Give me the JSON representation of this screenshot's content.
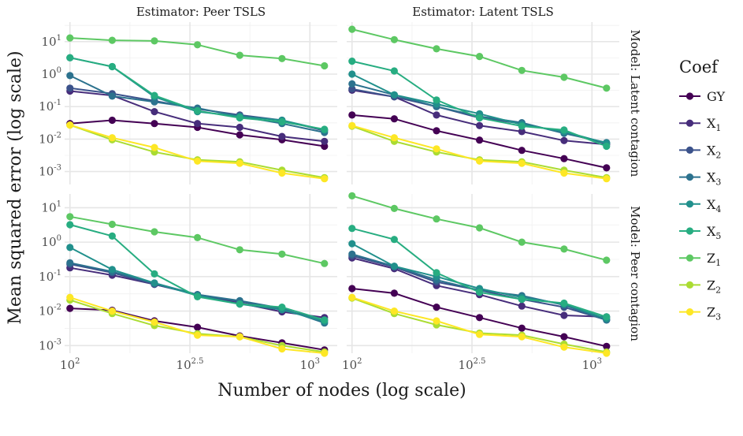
{
  "chart_data": {
    "type": "line",
    "facets": {
      "columns": [
        "Estimator: Peer TSLS",
        "Estimator: Latent TSLS"
      ],
      "rows": [
        "Model: Latent contagion",
        "Model: Peer contagion"
      ]
    },
    "xlabel": "Number of nodes (log scale)",
    "ylabel": "Mean squared error (log scale)",
    "x_scale": "log10",
    "y_scale": "log10",
    "xlim": [
      95,
      1300
    ],
    "ylim_rows": [
      [
        0.0004,
        40
      ],
      [
        0.0006,
        25
      ]
    ],
    "x_ticks": [
      {
        "value": 100,
        "base": "10",
        "exp": "2"
      },
      {
        "value": 316.2,
        "base": "10",
        "exp": "2.5"
      },
      {
        "value": 1000,
        "base": "10",
        "exp": "3"
      }
    ],
    "y_ticks": [
      {
        "value": 0.001,
        "base": "10",
        "exp": "-3"
      },
      {
        "value": 0.01,
        "base": "10",
        "exp": "-2"
      },
      {
        "value": 0.1,
        "base": "10",
        "exp": "-1"
      },
      {
        "value": 1,
        "base": "10",
        "exp": "0"
      },
      {
        "value": 10,
        "base": "10",
        "exp": "1"
      }
    ],
    "x": [
      100,
      150,
      225,
      340,
      510,
      765,
      1150
    ],
    "legend": {
      "title": "Coef",
      "position": "right"
    },
    "series": [
      {
        "name": "GY",
        "label_base": "GY",
        "label_sub": "",
        "color": "#440154"
      },
      {
        "name": "X1",
        "label_base": "X",
        "label_sub": "1",
        "color": "#472D7B"
      },
      {
        "name": "X2",
        "label_base": "X",
        "label_sub": "2",
        "color": "#3B528B"
      },
      {
        "name": "X3",
        "label_base": "X",
        "label_sub": "3",
        "color": "#2C728E"
      },
      {
        "name": "X4",
        "label_base": "X",
        "label_sub": "4",
        "color": "#21908C"
      },
      {
        "name": "X5",
        "label_base": "X",
        "label_sub": "5",
        "color": "#27AD81"
      },
      {
        "name": "Z1",
        "label_base": "Z",
        "label_sub": "1",
        "color": "#5DC863"
      },
      {
        "name": "Z2",
        "label_base": "Z",
        "label_sub": "2",
        "color": "#AADC32"
      },
      {
        "name": "Z3",
        "label_base": "Z",
        "label_sub": "3",
        "color": "#FDE725"
      }
    ],
    "panels": [
      {
        "row": 0,
        "col": 0,
        "values": {
          "GY": [
            0.03,
            0.038,
            0.03,
            0.023,
            0.0135,
            0.0095,
            0.006
          ],
          "X1": [
            0.3,
            0.22,
            0.07,
            0.03,
            0.023,
            0.012,
            0.0085
          ],
          "X2": [
            0.37,
            0.25,
            0.15,
            0.085,
            0.055,
            0.038,
            0.018
          ],
          "X3": [
            0.9,
            0.21,
            0.14,
            0.09,
            0.05,
            0.03,
            0.016
          ],
          "X4": [
            3.2,
            1.7,
            0.2,
            0.07,
            0.05,
            0.038,
            0.019
          ],
          "X5": [
            3.2,
            1.7,
            0.22,
            0.075,
            0.045,
            0.034,
            0.02
          ],
          "Z1": [
            13,
            11,
            10.5,
            8,
            3.8,
            3,
            1.8
          ],
          "Z2": [
            0.027,
            0.0095,
            0.004,
            0.0023,
            0.002,
            0.0011,
            0.00065
          ],
          "Z3": [
            0.027,
            0.011,
            0.0055,
            0.0021,
            0.0018,
            0.0009,
            0.0006
          ]
        }
      },
      {
        "row": 0,
        "col": 1,
        "values": {
          "GY": [
            0.055,
            0.042,
            0.018,
            0.0093,
            0.0045,
            0.0025,
            0.0013
          ],
          "X1": [
            0.32,
            0.2,
            0.055,
            0.026,
            0.017,
            0.009,
            0.0068
          ],
          "X2": [
            0.35,
            0.2,
            0.1,
            0.045,
            0.03,
            0.016,
            0.0072
          ],
          "X3": [
            0.5,
            0.23,
            0.1,
            0.05,
            0.032,
            0.015,
            0.0078
          ],
          "X4": [
            1.0,
            0.23,
            0.12,
            0.06,
            0.028,
            0.017,
            0.0075
          ],
          "X5": [
            2.5,
            1.25,
            0.16,
            0.045,
            0.025,
            0.019,
            0.006
          ],
          "Z1": [
            24,
            11.5,
            6,
            3.5,
            1.3,
            0.8,
            0.37
          ],
          "Z2": [
            0.025,
            0.0085,
            0.004,
            0.0023,
            0.002,
            0.0011,
            0.00065
          ],
          "Z3": [
            0.026,
            0.011,
            0.005,
            0.0021,
            0.0018,
            0.0009,
            0.0006
          ]
        }
      },
      {
        "row": 1,
        "col": 0,
        "values": {
          "GY": [
            0.012,
            0.0105,
            0.0052,
            0.0034,
            0.0019,
            0.0012,
            0.00075
          ],
          "X1": [
            0.18,
            0.11,
            0.06,
            0.03,
            0.017,
            0.0095,
            0.0065
          ],
          "X2": [
            0.23,
            0.13,
            0.06,
            0.03,
            0.019,
            0.011,
            0.0055
          ],
          "X3": [
            0.25,
            0.14,
            0.065,
            0.03,
            0.02,
            0.012,
            0.0045
          ],
          "X4": [
            0.7,
            0.16,
            0.065,
            0.028,
            0.016,
            0.011,
            0.005
          ],
          "X5": [
            3.2,
            1.5,
            0.12,
            0.026,
            0.016,
            0.013,
            0.0055
          ],
          "Z1": [
            5.5,
            3.3,
            2,
            1.35,
            0.6,
            0.45,
            0.24
          ],
          "Z2": [
            0.021,
            0.0085,
            0.0038,
            0.0022,
            0.0018,
            0.001,
            0.00065
          ],
          "Z3": [
            0.025,
            0.01,
            0.0048,
            0.002,
            0.0018,
            0.0008,
            0.0006
          ]
        }
      },
      {
        "row": 1,
        "col": 1,
        "values": {
          "GY": [
            0.045,
            0.033,
            0.013,
            0.0065,
            0.0032,
            0.0018,
            0.00095
          ],
          "X1": [
            0.35,
            0.17,
            0.055,
            0.03,
            0.014,
            0.0075,
            0.0068
          ],
          "X2": [
            0.4,
            0.19,
            0.07,
            0.04,
            0.022,
            0.013,
            0.0055
          ],
          "X3": [
            0.45,
            0.2,
            0.08,
            0.04,
            0.028,
            0.015,
            0.0055
          ],
          "X4": [
            0.9,
            0.2,
            0.1,
            0.045,
            0.025,
            0.016,
            0.006
          ],
          "X5": [
            2.5,
            1.2,
            0.13,
            0.035,
            0.022,
            0.017,
            0.0068
          ],
          "Z1": [
            22,
            9.5,
            4.7,
            2.6,
            1.0,
            0.63,
            0.3
          ],
          "Z2": [
            0.024,
            0.0085,
            0.004,
            0.0023,
            0.002,
            0.0011,
            0.00065
          ],
          "Z3": [
            0.025,
            0.01,
            0.0052,
            0.0021,
            0.0018,
            0.0009,
            0.0006
          ]
        }
      }
    ]
  }
}
